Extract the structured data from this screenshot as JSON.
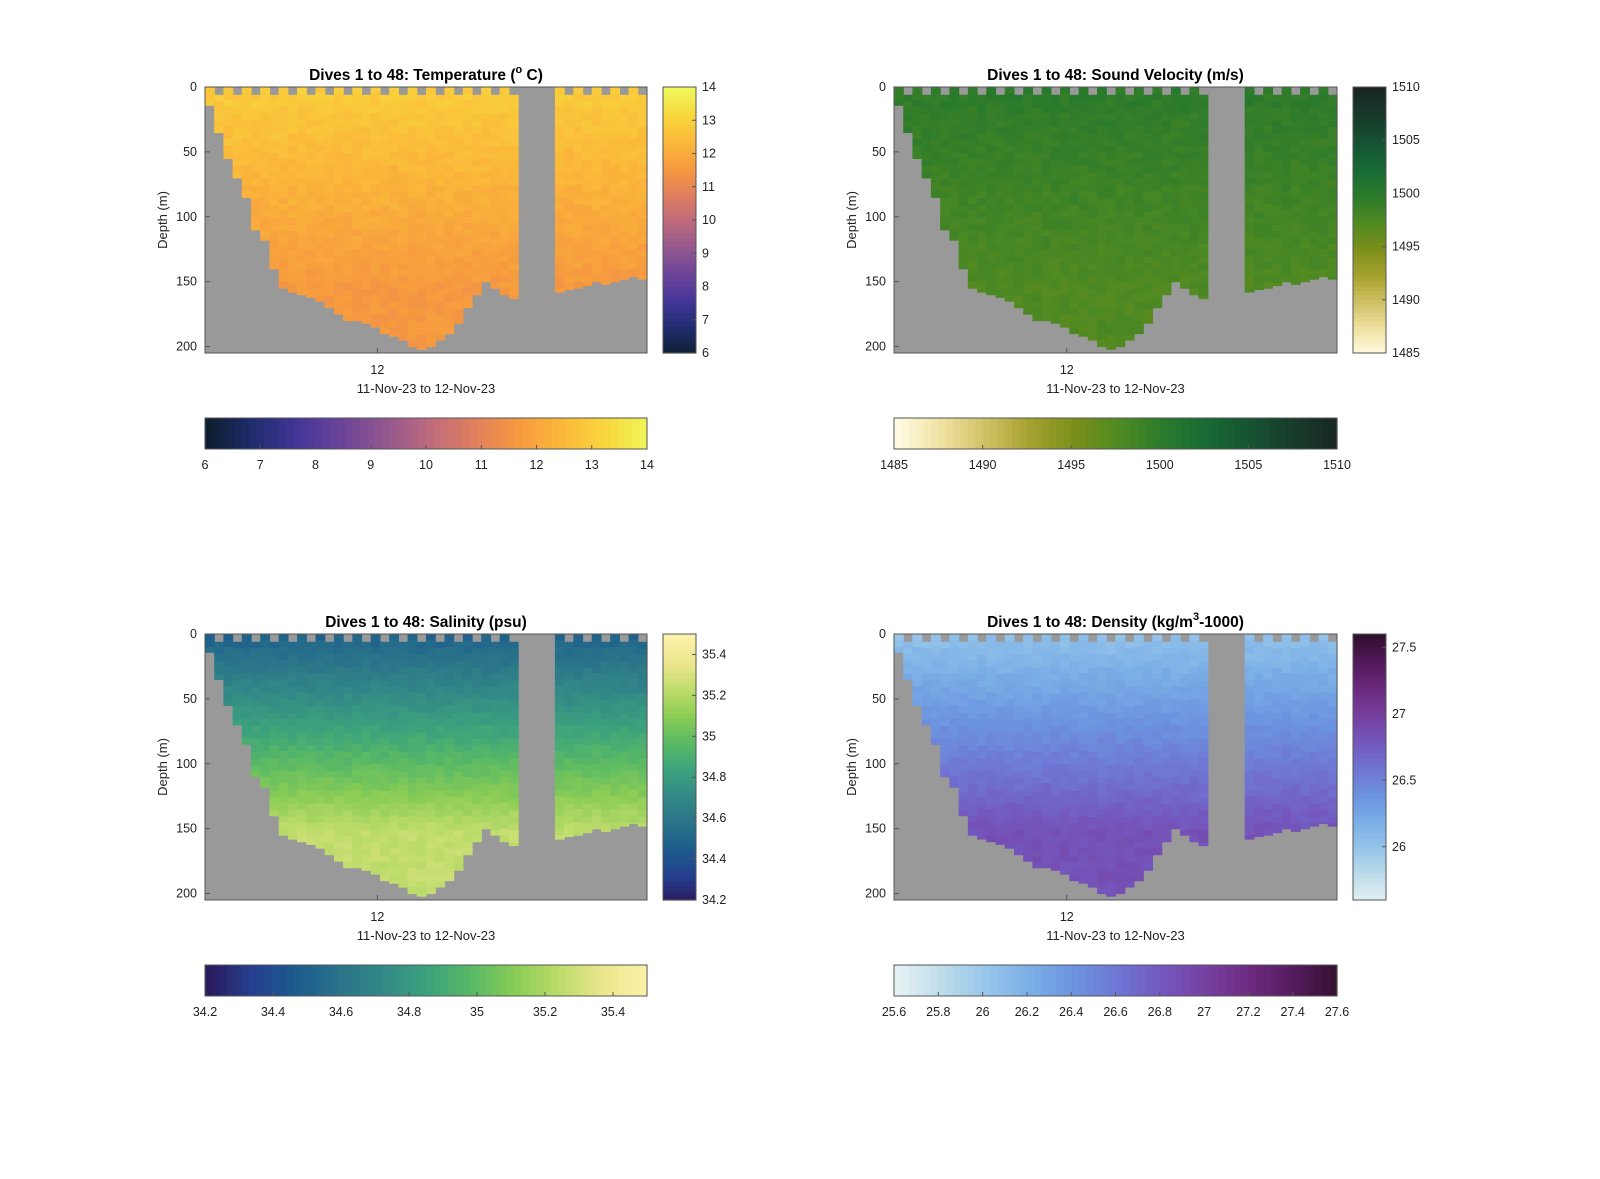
{
  "chart_data": [
    {
      "type": "heatmap",
      "title_main": "Dives 1 to 48: Temperature (",
      "title_sup": "o",
      "title_tail": " C)",
      "xlabel": "11-Nov-23 to 12-Nov-23",
      "ylabel": "Depth (m)",
      "x_ticks": [
        "12"
      ],
      "y_ticks": [
        "0",
        "50",
        "100",
        "150",
        "200"
      ],
      "ylim": [
        0,
        205
      ],
      "dives": 48,
      "depth_profile": [
        14,
        35,
        55,
        70,
        85,
        110,
        118,
        140,
        155,
        158,
        160,
        162,
        165,
        170,
        175,
        180,
        180,
        182,
        185,
        190,
        192,
        195,
        200,
        202,
        200,
        195,
        190,
        182,
        170,
        160,
        150,
        155,
        160,
        163,
        0,
        0,
        0,
        0,
        158,
        156,
        155,
        153,
        150,
        152,
        150,
        148,
        146,
        148
      ],
      "field": {
        "shallow": 12.9,
        "deep": 11.6
      },
      "colormap": [
        "#0f1f2f",
        "#1f2c6e",
        "#433598",
        "#6b4499",
        "#93578f",
        "#bd6a7d",
        "#e07e5e",
        "#f6993f",
        "#fbb83a",
        "#f8d73c",
        "#eef85a"
      ],
      "colorbar": {
        "min": 6,
        "max": 14,
        "ticks": [
          "6",
          "7",
          "8",
          "9",
          "10",
          "11",
          "12",
          "13",
          "14"
        ]
      },
      "horizontal_colorbar": {
        "ticks": [
          "6",
          "7",
          "8",
          "9",
          "10",
          "11",
          "12",
          "13",
          "14"
        ]
      }
    },
    {
      "type": "heatmap",
      "title_main": "Dives 1 to 48: Sound Velocity (m/s)",
      "title_sup": "",
      "title_tail": "",
      "xlabel": "11-Nov-23 to 12-Nov-23",
      "ylabel": "Depth (m)",
      "x_ticks": [
        "12"
      ],
      "y_ticks": [
        "0",
        "50",
        "100",
        "150",
        "200"
      ],
      "ylim": [
        0,
        205
      ],
      "dives": 48,
      "depth_profile": [
        14,
        35,
        55,
        70,
        85,
        110,
        118,
        140,
        155,
        158,
        160,
        162,
        165,
        170,
        175,
        180,
        180,
        182,
        185,
        190,
        192,
        195,
        200,
        202,
        200,
        195,
        190,
        182,
        170,
        160,
        150,
        155,
        160,
        163,
        0,
        0,
        0,
        0,
        158,
        156,
        155,
        153,
        150,
        152,
        150,
        148,
        146,
        148
      ],
      "field": {
        "shallow": 1499.8,
        "deep": 1497.5
      },
      "colormap": [
        "#fefbe2",
        "#efe1a0",
        "#cfc064",
        "#a5a12e",
        "#7a8f1a",
        "#4f8a22",
        "#2a7a2c",
        "#176a33",
        "#165232",
        "#183a2a",
        "#172620"
      ],
      "colorbar": {
        "min": 1485,
        "max": 1510,
        "ticks": [
          "1485",
          "1490",
          "1495",
          "1500",
          "1505",
          "1510"
        ]
      },
      "horizontal_colorbar": {
        "ticks": [
          "1485",
          "1490",
          "1495",
          "1500",
          "1505",
          "1510"
        ]
      }
    },
    {
      "type": "heatmap",
      "title_main": "Dives 1 to 48: Salinity (psu)",
      "title_sup": "",
      "title_tail": "",
      "xlabel": "11-Nov-23 to 12-Nov-23",
      "ylabel": "Depth (m)",
      "x_ticks": [
        "12"
      ],
      "y_ticks": [
        "0",
        "50",
        "100",
        "150",
        "200"
      ],
      "ylim": [
        0,
        205
      ],
      "dives": 48,
      "depth_profile": [
        14,
        35,
        55,
        70,
        85,
        110,
        118,
        140,
        155,
        158,
        160,
        162,
        165,
        170,
        175,
        180,
        180,
        182,
        185,
        190,
        192,
        195,
        200,
        202,
        200,
        195,
        190,
        182,
        170,
        160,
        150,
        155,
        160,
        163,
        0,
        0,
        0,
        0,
        158,
        156,
        155,
        153,
        150,
        152,
        150,
        148,
        146,
        148
      ],
      "field": {
        "shallow": 34.5,
        "deep": 35.25
      },
      "colormap": [
        "#2a1a5e",
        "#243f8f",
        "#1d5c8c",
        "#2a748a",
        "#338a86",
        "#3ca37c",
        "#5bba64",
        "#8ccd55",
        "#bfdc6c",
        "#eee78f",
        "#fcf2ab"
      ],
      "colorbar": {
        "min": 34.2,
        "max": 35.5,
        "ticks": [
          "34.2",
          "34.4",
          "34.6",
          "34.8",
          "35",
          "35.2",
          "35.4"
        ]
      },
      "horizontal_colorbar": {
        "ticks": [
          "34.2",
          "34.4",
          "34.6",
          "34.8",
          "35",
          "35.2",
          "35.4"
        ]
      }
    },
    {
      "type": "heatmap",
      "title_main": "Dives 1 to 48: Density (kg/m",
      "title_sup": "3",
      "title_tail": "-1000)",
      "xlabel": "11-Nov-23 to 12-Nov-23",
      "ylabel": "Depth (m)",
      "x_ticks": [
        "12"
      ],
      "y_ticks": [
        "0",
        "50",
        "100",
        "150",
        "200"
      ],
      "ylim": [
        0,
        205
      ],
      "dives": 48,
      "depth_profile": [
        14,
        35,
        55,
        70,
        85,
        110,
        118,
        140,
        155,
        158,
        160,
        162,
        165,
        170,
        175,
        180,
        180,
        182,
        185,
        190,
        192,
        195,
        200,
        202,
        200,
        195,
        190,
        182,
        170,
        160,
        150,
        155,
        160,
        163,
        0,
        0,
        0,
        0,
        158,
        156,
        155,
        153,
        150,
        152,
        150,
        148,
        146,
        148
      ],
      "field": {
        "shallow": 26.05,
        "deep": 26.85
      },
      "colormap": [
        "#e6f1f3",
        "#bcdcea",
        "#97c6ea",
        "#7aaee6",
        "#6c93df",
        "#6f75d4",
        "#7457be",
        "#763f9f",
        "#6b2a7e",
        "#521a5a",
        "#32102f"
      ],
      "colorbar": {
        "min": 25.6,
        "max": 27.6,
        "ticks": [
          "26",
          "26.5",
          "27",
          "27.5"
        ]
      },
      "horizontal_colorbar": {
        "ticks": [
          "25.6",
          "25.8",
          "26",
          "26.2",
          "26.4",
          "26.6",
          "26.8",
          "27",
          "27.2",
          "27.4",
          "27.6"
        ]
      }
    }
  ]
}
